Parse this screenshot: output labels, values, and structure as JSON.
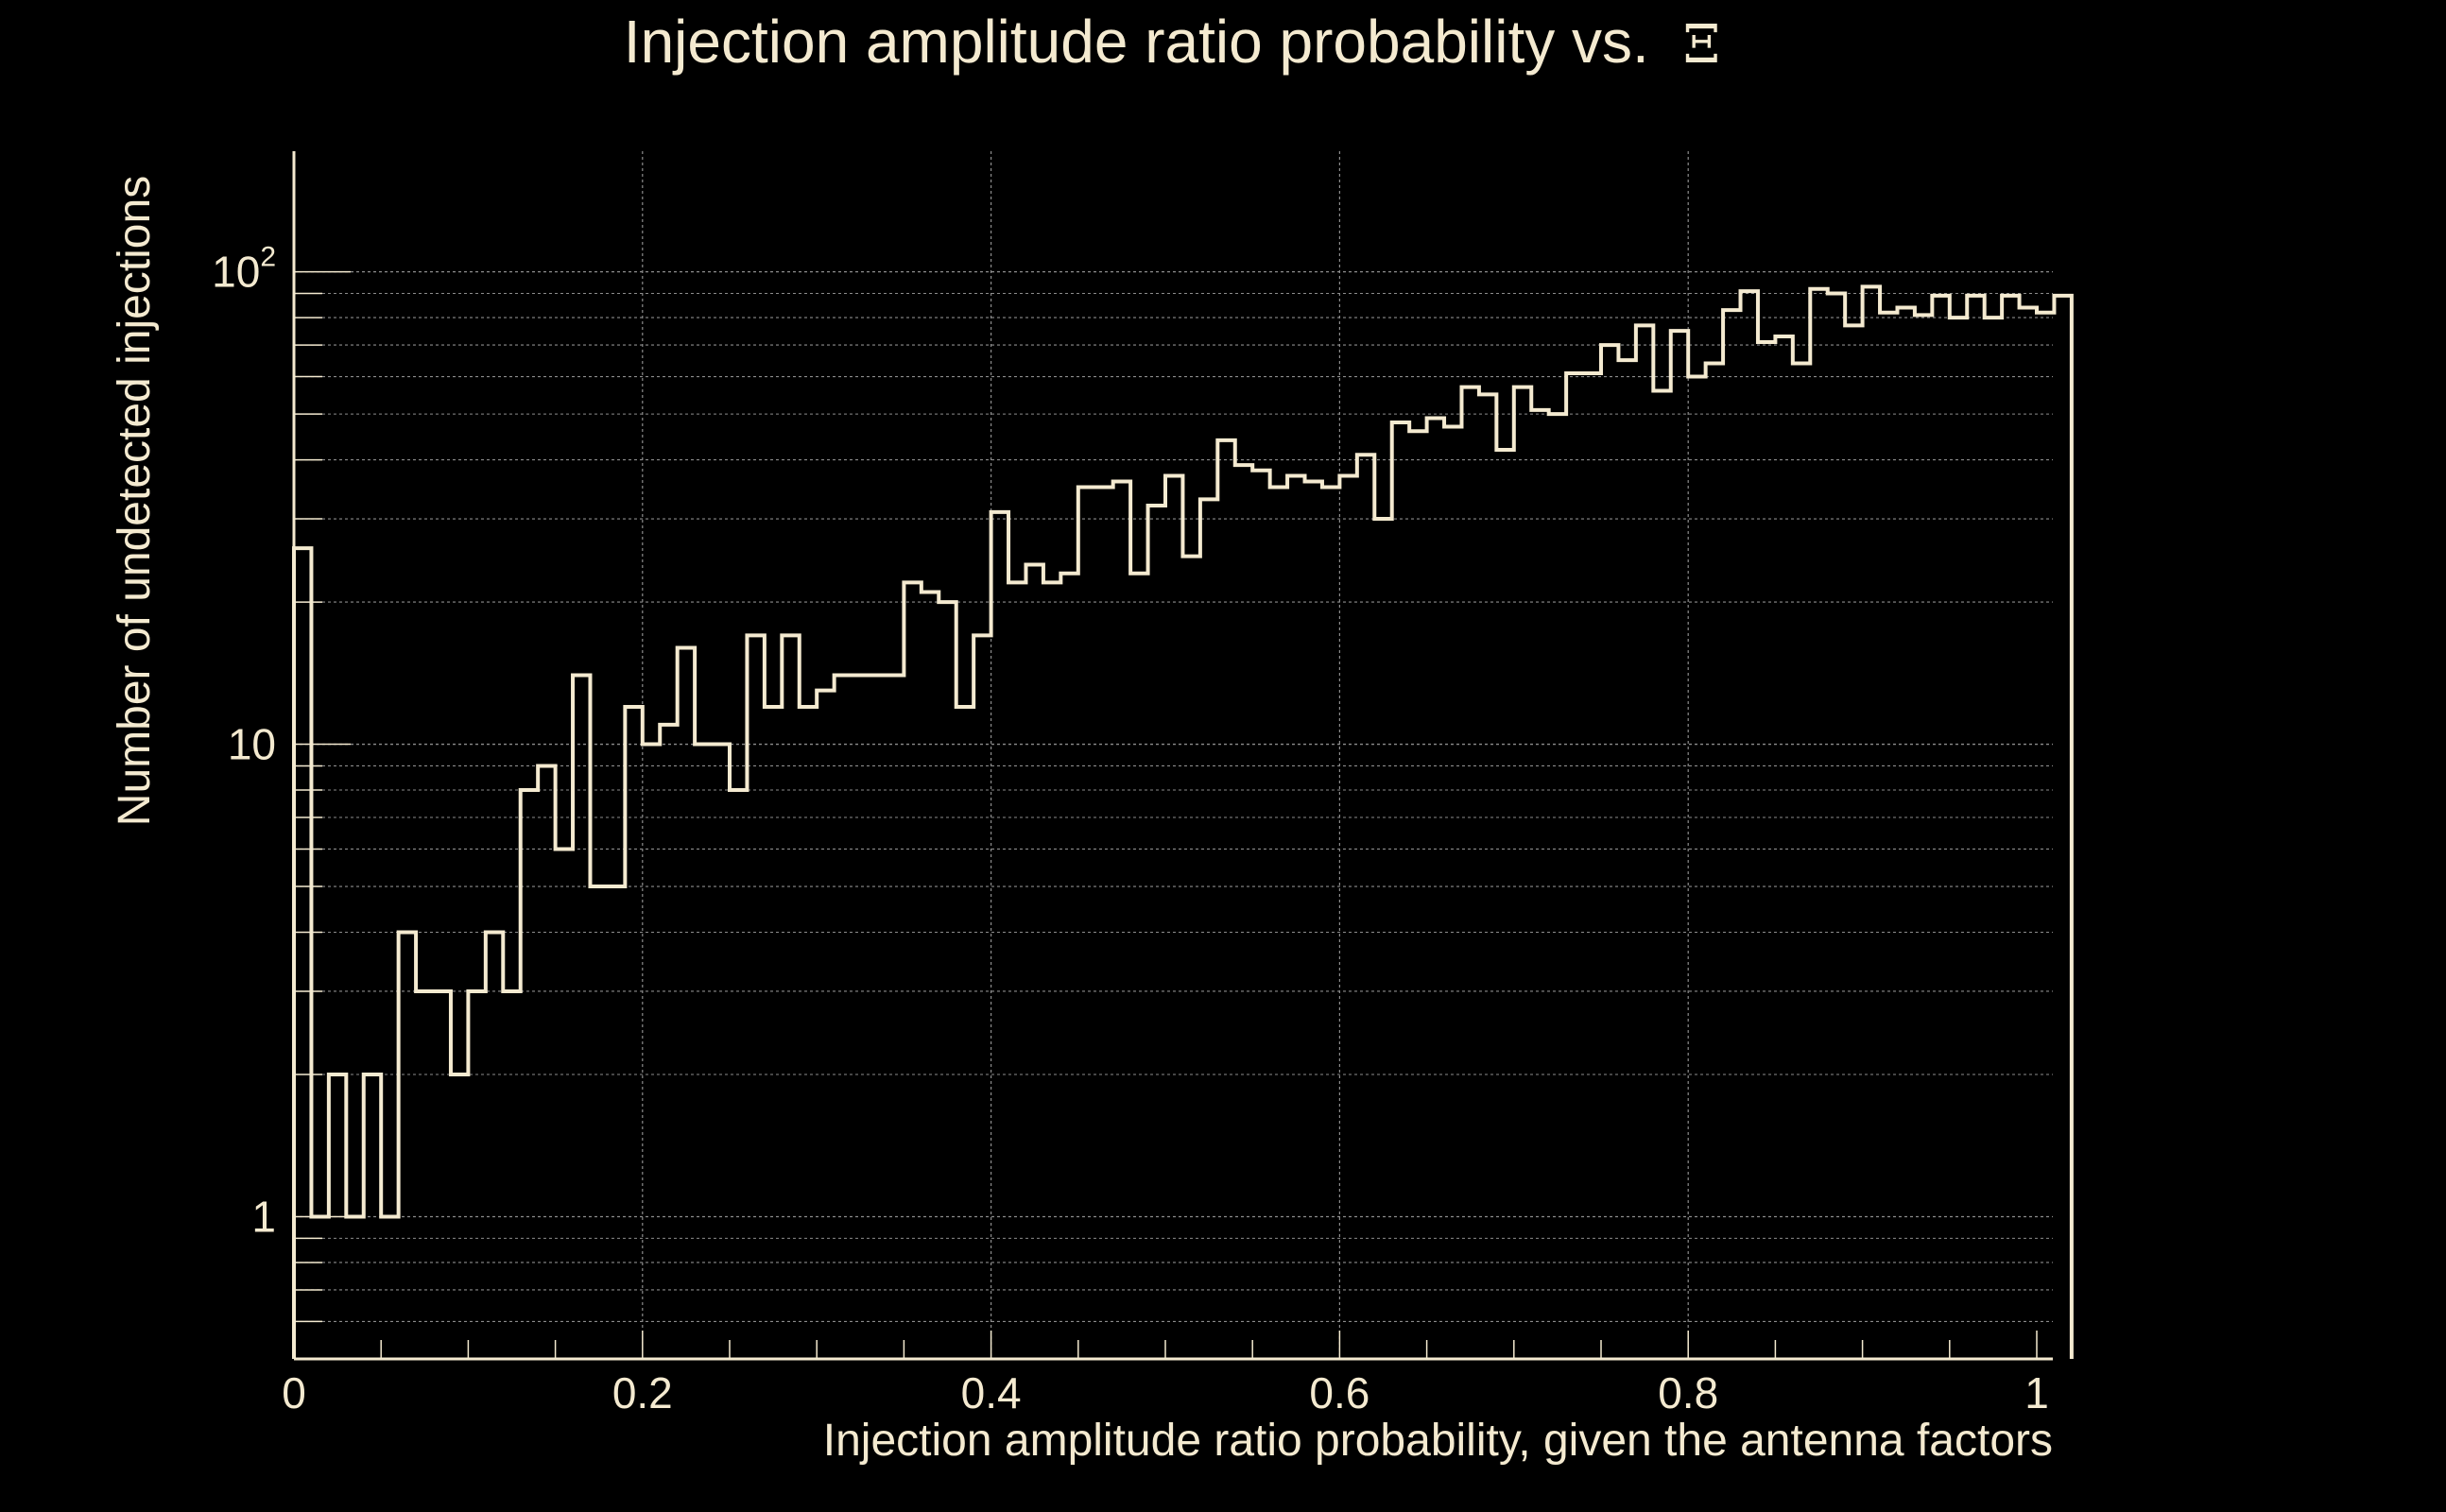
{
  "colors": {
    "background": "#000000",
    "foreground": "#f4ead0",
    "grid": "#8c8c8c"
  },
  "chart_data": {
    "type": "histogram",
    "title": "Injection amplitude ratio probability vs.",
    "title_symbol": "Ξ",
    "xlabel": "Injection amplitude ratio probability, given the antenna factors",
    "ylabel": "Number of undetected injections",
    "xlim": [
      0,
      1
    ],
    "ylim": [
      0.5,
      180
    ],
    "yscale": "log",
    "x_ticks": [
      0,
      0.2,
      0.4,
      0.6,
      0.8,
      1
    ],
    "x_tick_labels": [
      "0",
      "0.2",
      "0.4",
      "0.6",
      "0.8",
      "1"
    ],
    "y_tick_labels": [
      {
        "value": 1,
        "label": "1"
      },
      {
        "value": 10,
        "label": "10"
      },
      {
        "value": 100,
        "label": "10",
        "exponent": "2"
      }
    ],
    "bin_width": 0.01,
    "counts": [
      26,
      1,
      2,
      1,
      2,
      1,
      4,
      3,
      3,
      2,
      3,
      4,
      3,
      8,
      9,
      6,
      14,
      5,
      5,
      12,
      10,
      11,
      16,
      10,
      10,
      8,
      17,
      12,
      17,
      12,
      13,
      14,
      14,
      14,
      14,
      22,
      21,
      20,
      12,
      17,
      31,
      22,
      24,
      22,
      23,
      35,
      35,
      36,
      23,
      32,
      37,
      25,
      33,
      44,
      39,
      38,
      35,
      37,
      36,
      35,
      37,
      41,
      30,
      48,
      46,
      49,
      47,
      57,
      55,
      42,
      57,
      51,
      50,
      61,
      61,
      70,
      65,
      77,
      56,
      75,
      60,
      64,
      83,
      91,
      71,
      73,
      64,
      92,
      90,
      77,
      93,
      82,
      84,
      81,
      89,
      80,
      89,
      80,
      89,
      84,
      82,
      89
    ]
  }
}
